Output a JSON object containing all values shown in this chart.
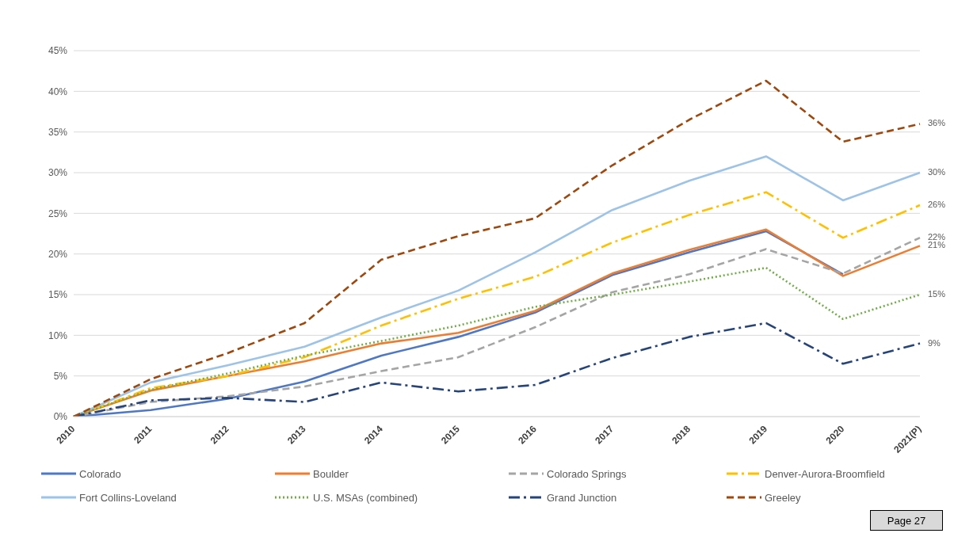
{
  "chart_data": {
    "type": "line",
    "categories": [
      "2010",
      "2011",
      "2012",
      "2013",
      "2014",
      "2015",
      "2016",
      "2017",
      "2018",
      "2019",
      "2020",
      "2021(P)"
    ],
    "series": [
      {
        "name": "Colorado",
        "color": "#4f78c4",
        "line_style": "solid",
        "values": [
          0,
          0.8,
          2.2,
          4.3,
          7.5,
          9.8,
          12.8,
          17.4,
          20.2,
          22.8,
          17.5,
          null
        ]
      },
      {
        "name": "Boulder",
        "color": "#ed7d31",
        "line_style": "solid",
        "values": [
          0,
          3.2,
          5,
          6.8,
          9,
          10.3,
          13,
          17.6,
          20.5,
          23,
          17.3,
          21
        ],
        "value_labels": [
          null,
          null,
          null,
          null,
          null,
          null,
          null,
          null,
          null,
          null,
          null,
          "21%"
        ]
      },
      {
        "name": "Colorado Springs",
        "color": "#a5a5a5",
        "line_style": "dashed",
        "values": [
          0,
          1.8,
          2.5,
          3.7,
          5.6,
          7.3,
          11,
          15.3,
          17.5,
          20.6,
          17.6,
          22
        ],
        "value_labels": [
          null,
          null,
          null,
          null,
          null,
          null,
          null,
          null,
          null,
          null,
          null,
          "22%"
        ]
      },
      {
        "name": "Denver-Aurora-Broomfield",
        "color": "#ffc000",
        "line_style": "dashdot",
        "values": [
          0,
          3.5,
          5,
          7.3,
          11.2,
          14.5,
          17.2,
          21.4,
          24.8,
          27.6,
          22,
          26
        ],
        "value_labels": [
          null,
          null,
          null,
          null,
          null,
          null,
          null,
          null,
          null,
          null,
          null,
          "26%"
        ]
      },
      {
        "name": "Fort Collins-Loveland",
        "color": "#9dc3e6",
        "line_style": "solid",
        "values": [
          0,
          4.2,
          6.3,
          8.6,
          12.2,
          15.5,
          20.2,
          25.4,
          29,
          32,
          26.6,
          30
        ],
        "value_labels": [
          null,
          null,
          null,
          null,
          null,
          null,
          null,
          null,
          null,
          null,
          null,
          "30%"
        ]
      },
      {
        "name": "U.S. MSAs (combined)",
        "color": "#70ad47",
        "line_style": "dotted",
        "values": [
          0,
          3.3,
          5.3,
          7.5,
          9.3,
          11.2,
          13.5,
          15,
          16.6,
          18.3,
          12,
          15
        ],
        "value_labels": [
          null,
          null,
          null,
          null,
          null,
          null,
          null,
          null,
          null,
          null,
          null,
          "15%"
        ]
      },
      {
        "name": "Grand Junction",
        "color": "#264478",
        "line_style": "dashdot",
        "values": [
          0,
          2,
          2.3,
          1.8,
          4.2,
          3.1,
          3.9,
          7.2,
          9.8,
          11.5,
          6.5,
          9
        ],
        "value_labels": [
          null,
          null,
          null,
          null,
          null,
          null,
          null,
          null,
          null,
          null,
          null,
          "9%"
        ]
      },
      {
        "name": "Greeley",
        "color": "#9e480e",
        "line_style": "dashed",
        "values": [
          0,
          4.6,
          7.8,
          11.5,
          19.3,
          22.2,
          24.4,
          30.9,
          36.5,
          41.3,
          33.8,
          36
        ],
        "value_labels": [
          null,
          null,
          null,
          null,
          null,
          null,
          null,
          null,
          null,
          null,
          null,
          "36%"
        ]
      }
    ],
    "ylim": [
      0,
      45
    ],
    "yticks": [
      {
        "value": 0,
        "label": "0%"
      },
      {
        "value": 5,
        "label": "5%"
      },
      {
        "value": 10,
        "label": "10%"
      },
      {
        "value": 15,
        "label": "15%"
      },
      {
        "value": 20,
        "label": "20%"
      },
      {
        "value": 25,
        "label": "25%"
      },
      {
        "value": 30,
        "label": "30%"
      },
      {
        "value": 35,
        "label": "35%"
      },
      {
        "value": 40,
        "label": "40%"
      },
      {
        "value": 45,
        "label": "45%"
      }
    ],
    "grid": "y",
    "legend": "bottom",
    "annotations": [
      "Page 27"
    ]
  }
}
